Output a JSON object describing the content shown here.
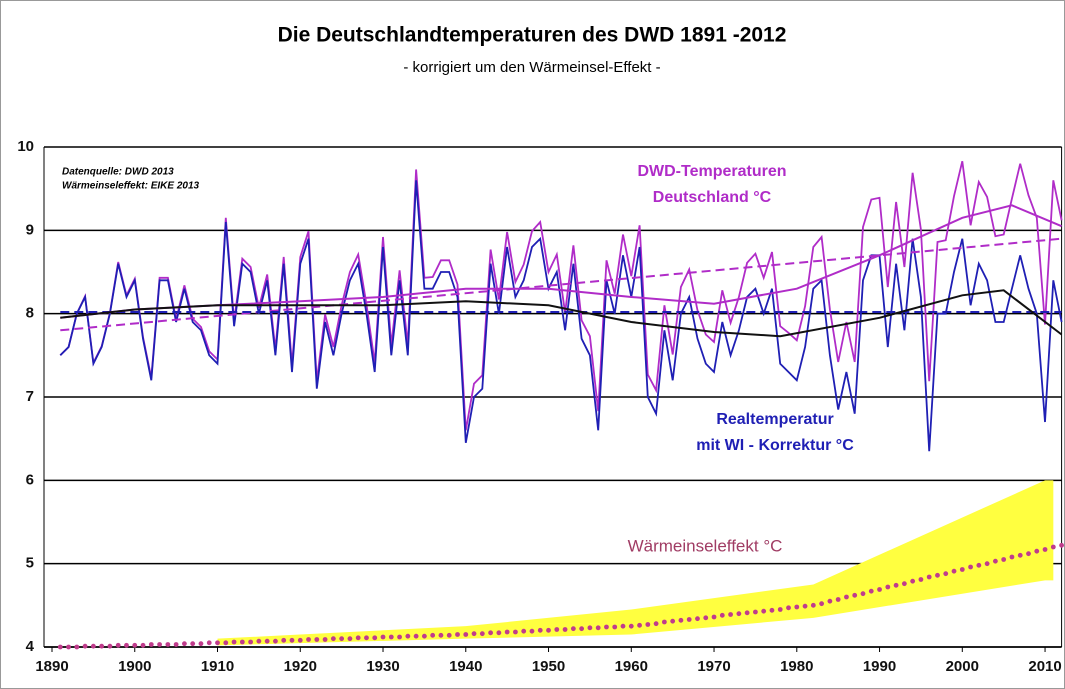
{
  "chart_data": {
    "type": "line",
    "title": "Die Deutschlandtemperaturen des DWD 1891 -2012",
    "subtitle": "- korrigiert um den Wärmeinsel-Effekt -",
    "annotations": [
      {
        "text": "Datenquelle: DWD 2013",
        "color": "#000000"
      },
      {
        "text": "Wärmeinseleffekt: EIKE 2013",
        "color": "#000000"
      },
      {
        "text": "DWD-Temperaturen",
        "color": "#b02cc8"
      },
      {
        "text": "Deutschland  °C",
        "color": "#b02cc8"
      },
      {
        "text": "Realtemperatur",
        "color": "#1f1fb4"
      },
      {
        "text": "mit WI - Korrektur  °C",
        "color": "#1f1fb4"
      },
      {
        "text": "Wärmeinseleffekt °C",
        "color": "#a03c64"
      }
    ],
    "xlim": [
      1890,
      2012
    ],
    "xticks": [
      1890,
      1900,
      1910,
      1920,
      1930,
      1940,
      1950,
      1960,
      1970,
      1980,
      1990,
      2000,
      2010
    ],
    "ylim": [
      4,
      10
    ],
    "yticks": [
      4,
      5,
      6,
      7,
      8,
      9,
      10
    ],
    "grid": true,
    "x": [
      1891,
      1892,
      1893,
      1894,
      1895,
      1896,
      1897,
      1898,
      1899,
      1900,
      1901,
      1902,
      1903,
      1904,
      1905,
      1906,
      1907,
      1908,
      1909,
      1910,
      1911,
      1912,
      1913,
      1914,
      1915,
      1916,
      1917,
      1918,
      1919,
      1920,
      1921,
      1922,
      1923,
      1924,
      1925,
      1926,
      1927,
      1928,
      1929,
      1930,
      1931,
      1932,
      1933,
      1934,
      1935,
      1936,
      1937,
      1938,
      1939,
      1940,
      1941,
      1942,
      1943,
      1944,
      1945,
      1946,
      1947,
      1948,
      1949,
      1950,
      1951,
      1952,
      1953,
      1954,
      1955,
      1956,
      1957,
      1958,
      1959,
      1960,
      1961,
      1962,
      1963,
      1964,
      1965,
      1966,
      1967,
      1968,
      1969,
      1970,
      1971,
      1972,
      1973,
      1974,
      1975,
      1976,
      1977,
      1978,
      1979,
      1980,
      1981,
      1982,
      1983,
      1984,
      1985,
      1986,
      1987,
      1988,
      1989,
      1990,
      1991,
      1992,
      1993,
      1994,
      1995,
      1996,
      1997,
      1998,
      1999,
      2000,
      2001,
      2002,
      2003,
      2004,
      2005,
      2006,
      2007,
      2008,
      2009,
      2010,
      2011,
      2012
    ],
    "band": {
      "color": "#ffff40",
      "x": [
        1910,
        1940,
        1960,
        1982,
        2010,
        2011
      ],
      "upper": [
        4.1,
        4.25,
        4.45,
        4.75,
        6.0,
        6.0
      ],
      "lower": [
        4.02,
        4.1,
        4.15,
        4.35,
        4.8,
        4.8
      ]
    },
    "series": [
      {
        "color": "#b02cc8",
        "style": "line",
        "values": [
          7.5,
          7.6,
          8.0,
          8.21,
          7.41,
          7.61,
          8.01,
          8.62,
          8.22,
          8.42,
          7.72,
          7.23,
          8.43,
          8.43,
          7.93,
          8.34,
          7.94,
          7.84,
          7.55,
          7.45,
          9.15,
          7.91,
          8.66,
          8.56,
          8.07,
          8.47,
          7.57,
          8.68,
          7.38,
          8.68,
          8.99,
          7.19,
          7.99,
          7.6,
          8.1,
          8.5,
          8.71,
          8.11,
          7.41,
          8.92,
          7.62,
          8.52,
          7.63,
          9.73,
          8.43,
          8.44,
          8.64,
          8.64,
          8.35,
          6.6,
          7.16,
          7.26,
          8.77,
          8.17,
          8.98,
          8.38,
          8.59,
          8.99,
          9.1,
          8.5,
          8.71,
          8.01,
          8.82,
          7.92,
          7.73,
          6.83,
          8.64,
          8.24,
          8.95,
          8.45,
          9.06,
          7.27,
          7.08,
          8.1,
          7.51,
          8.32,
          8.53,
          8.04,
          7.75,
          7.66,
          8.28,
          7.89,
          8.2,
          8.61,
          8.72,
          8.43,
          8.74,
          7.85,
          7.77,
          7.68,
          8.09,
          8.8,
          8.92,
          8.05,
          7.42,
          7.9,
          7.42,
          9.04,
          9.37,
          9.39,
          8.32,
          9.34,
          8.56,
          9.69,
          9.01,
          7.19,
          8.86,
          8.88,
          9.41,
          9.83,
          9.06,
          9.58,
          9.4,
          8.93,
          8.95,
          9.38,
          9.8,
          9.42,
          9.15,
          7.87,
          9.6,
          9.12
        ]
      },
      {
        "color": "#1f1fb4",
        "style": "line",
        "values": [
          7.5,
          7.6,
          8.0,
          8.2,
          7.4,
          7.6,
          8.0,
          8.6,
          8.2,
          8.4,
          7.7,
          7.2,
          8.4,
          8.4,
          7.9,
          8.3,
          7.9,
          7.8,
          7.5,
          7.4,
          9.1,
          7.85,
          8.6,
          8.5,
          8.0,
          8.4,
          7.5,
          8.6,
          7.3,
          8.6,
          8.9,
          7.1,
          7.9,
          7.5,
          8.0,
          8.4,
          8.6,
          8.0,
          7.3,
          8.8,
          7.5,
          8.4,
          7.5,
          9.6,
          8.3,
          8.3,
          8.5,
          8.5,
          8.2,
          6.45,
          7.0,
          7.1,
          8.6,
          8.0,
          8.8,
          8.2,
          8.4,
          8.8,
          8.9,
          8.3,
          8.5,
          7.8,
          8.6,
          7.7,
          7.5,
          6.6,
          8.4,
          8.0,
          8.7,
          8.2,
          8.8,
          7.0,
          6.8,
          7.8,
          7.2,
          8.0,
          8.2,
          7.7,
          7.4,
          7.3,
          7.9,
          7.5,
          7.8,
          8.2,
          8.3,
          8.0,
          8.3,
          7.4,
          7.3,
          7.2,
          7.6,
          8.3,
          8.4,
          7.5,
          6.85,
          7.3,
          6.8,
          8.4,
          8.7,
          8.7,
          7.6,
          8.6,
          7.8,
          8.9,
          8.2,
          6.35,
          8.0,
          8.0,
          8.5,
          8.9,
          8.1,
          8.6,
          8.4,
          7.9,
          7.9,
          8.3,
          8.7,
          8.3,
          8.0,
          6.7,
          8.4,
          7.9
        ]
      },
      {
        "color": "#b02cc8",
        "style": "dash",
        "x": [
          1891,
          2012
        ],
        "values": [
          7.8,
          8.9
        ]
      },
      {
        "color": "#1f1fb4",
        "style": "dash",
        "x": [
          1891,
          2012
        ],
        "values": [
          8.02,
          8.02
        ]
      },
      {
        "color": "#b02cc8",
        "style": "smooth",
        "x": [
          1891,
          1900,
          1910,
          1920,
          1930,
          1940,
          1950,
          1960,
          1970,
          1980,
          1990,
          2000,
          2006,
          2012
        ],
        "values": [
          7.95,
          8.05,
          8.1,
          8.15,
          8.2,
          8.3,
          8.3,
          8.2,
          8.12,
          8.3,
          8.7,
          9.15,
          9.3,
          9.05
        ]
      },
      {
        "color": "#111111",
        "style": "smooth",
        "x": [
          1891,
          1900,
          1910,
          1920,
          1930,
          1940,
          1950,
          1960,
          1970,
          1978,
          1990,
          2000,
          2005,
          2012
        ],
        "values": [
          7.95,
          8.05,
          8.1,
          8.1,
          8.1,
          8.15,
          8.1,
          7.9,
          7.78,
          7.73,
          7.95,
          8.22,
          8.28,
          7.75
        ]
      },
      {
        "color": "#c03c8c",
        "style": "dots",
        "values": [
          4.0,
          4.0,
          4.0,
          4.01,
          4.01,
          4.01,
          4.01,
          4.02,
          4.02,
          4.02,
          4.02,
          4.03,
          4.03,
          4.03,
          4.03,
          4.04,
          4.04,
          4.04,
          4.05,
          4.05,
          4.05,
          4.06,
          4.06,
          4.06,
          4.07,
          4.07,
          4.07,
          4.08,
          4.08,
          4.08,
          4.09,
          4.09,
          4.09,
          4.1,
          4.1,
          4.1,
          4.11,
          4.11,
          4.11,
          4.12,
          4.12,
          4.12,
          4.13,
          4.13,
          4.13,
          4.14,
          4.14,
          4.14,
          4.15,
          4.15,
          4.16,
          4.16,
          4.17,
          4.17,
          4.18,
          4.18,
          4.19,
          4.19,
          4.2,
          4.2,
          4.21,
          4.21,
          4.22,
          4.22,
          4.23,
          4.23,
          4.24,
          4.24,
          4.25,
          4.25,
          4.26,
          4.27,
          4.28,
          4.3,
          4.31,
          4.32,
          4.33,
          4.34,
          4.35,
          4.36,
          4.38,
          4.39,
          4.4,
          4.41,
          4.42,
          4.43,
          4.44,
          4.45,
          4.47,
          4.48,
          4.49,
          4.5,
          4.52,
          4.55,
          4.57,
          4.6,
          4.62,
          4.64,
          4.67,
          4.69,
          4.72,
          4.74,
          4.76,
          4.79,
          4.81,
          4.84,
          4.86,
          4.88,
          4.91,
          4.93,
          4.96,
          4.98,
          5.0,
          5.03,
          5.05,
          5.08,
          5.1,
          5.12,
          5.15,
          5.17,
          5.2,
          5.22
        ]
      }
    ]
  }
}
